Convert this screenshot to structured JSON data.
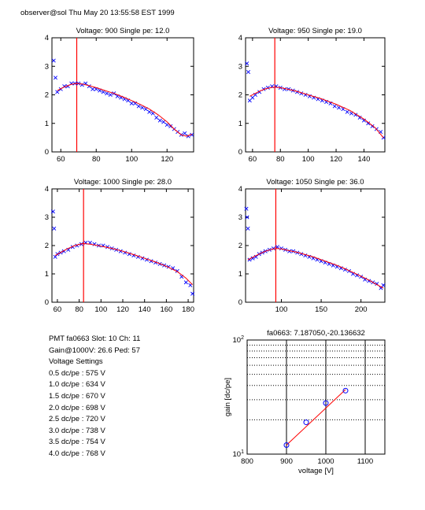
{
  "header": "observer@sol  Thu May 20 13:55:58 EST 1999",
  "info": {
    "pmt_line": "PMT fa0663 Slot: 10 Ch: 11",
    "gain_line": "Gain@1000V: 26.6 Ped: 57",
    "settings_title": "Voltage Settings",
    "settings": [
      "0.5 dc/pe : 575 V",
      "1.0 dc/pe : 634 V",
      "1.5 dc/pe : 670 V",
      "2.0 dc/pe : 698 V",
      "2.5 dc/pe : 720 V",
      "3.0 dc/pe : 738 V",
      "3.5 dc/pe : 754 V",
      "4.0 dc/pe : 768 V"
    ]
  },
  "colors": {
    "data": "#0000ff",
    "fit": "#ff0000",
    "marker": "#ff0000",
    "axis": "#000000",
    "grid": "#000000"
  },
  "chart_data": [
    {
      "type": "scatter",
      "title": "Voltage: 900 Single pe: 12.0",
      "xlim": [
        55,
        135
      ],
      "ylim": [
        0,
        4
      ],
      "xticks": [
        60,
        80,
        100,
        120
      ],
      "yticks": [
        0,
        1,
        2,
        3,
        4
      ],
      "marker_x": 69,
      "series": [
        {
          "kind": "points",
          "x": [
            56,
            57,
            58,
            60,
            62,
            64,
            66,
            68,
            70,
            72,
            74,
            76,
            78,
            80,
            82,
            84,
            86,
            88,
            90,
            92,
            94,
            96,
            98,
            100,
            102,
            104,
            106,
            108,
            110,
            112,
            114,
            116,
            118,
            120,
            122,
            124,
            126,
            128,
            130,
            132,
            134
          ],
          "y": [
            3.2,
            2.6,
            2.1,
            2.2,
            2.3,
            2.3,
            2.4,
            2.4,
            2.4,
            2.35,
            2.4,
            2.3,
            2.2,
            2.2,
            2.15,
            2.1,
            2.05,
            2.0,
            2.05,
            1.95,
            1.9,
            1.85,
            1.8,
            1.7,
            1.7,
            1.6,
            1.55,
            1.5,
            1.4,
            1.35,
            1.2,
            1.1,
            1.05,
            0.95,
            0.9,
            0.8,
            0.7,
            0.6,
            0.65,
            0.55,
            0.6
          ]
        },
        {
          "kind": "fit",
          "x": [
            58,
            62,
            66,
            69,
            72,
            76,
            80,
            85,
            90,
            95,
            100,
            105,
            110,
            115,
            120,
            124,
            128,
            131,
            134
          ],
          "y": [
            2.15,
            2.28,
            2.37,
            2.4,
            2.38,
            2.32,
            2.25,
            2.15,
            2.05,
            1.93,
            1.8,
            1.66,
            1.5,
            1.3,
            1.05,
            0.8,
            0.6,
            0.55,
            0.62
          ]
        }
      ]
    },
    {
      "type": "scatter",
      "title": "Voltage: 950 Single pe: 19.0",
      "xlim": [
        55,
        155
      ],
      "ylim": [
        0,
        4
      ],
      "xticks": [
        60,
        80,
        100,
        120,
        140
      ],
      "yticks": [
        0,
        1,
        2,
        3,
        4
      ],
      "marker_x": 76,
      "series": [
        {
          "kind": "points",
          "x": [
            56,
            57,
            58,
            60,
            62,
            65,
            68,
            71,
            74,
            77,
            80,
            83,
            86,
            89,
            92,
            95,
            98,
            101,
            104,
            107,
            110,
            113,
            116,
            119,
            122,
            125,
            128,
            131,
            134,
            137,
            140,
            143,
            146,
            149,
            152,
            154
          ],
          "y": [
            3.1,
            2.8,
            1.8,
            1.9,
            2.0,
            2.1,
            2.2,
            2.25,
            2.3,
            2.3,
            2.25,
            2.2,
            2.2,
            2.15,
            2.1,
            2.05,
            2.0,
            1.95,
            1.9,
            1.85,
            1.8,
            1.75,
            1.7,
            1.6,
            1.55,
            1.5,
            1.4,
            1.35,
            1.3,
            1.2,
            1.1,
            1.0,
            0.9,
            0.8,
            0.7,
            0.5
          ]
        },
        {
          "kind": "fit",
          "x": [
            58,
            62,
            66,
            70,
            74,
            76,
            80,
            90,
            100,
            110,
            120,
            130,
            140,
            148,
            154
          ],
          "y": [
            1.95,
            2.05,
            2.15,
            2.22,
            2.26,
            2.27,
            2.25,
            2.15,
            2.0,
            1.85,
            1.67,
            1.45,
            1.15,
            0.85,
            0.5
          ]
        }
      ]
    },
    {
      "type": "scatter",
      "title": "Voltage: 1000 Single pe: 28.0",
      "xlim": [
        55,
        185
      ],
      "ylim": [
        0,
        4
      ],
      "xticks": [
        60,
        80,
        100,
        120,
        140,
        160,
        180
      ],
      "yticks": [
        0,
        1,
        2,
        3,
        4
      ],
      "marker_x": 84,
      "series": [
        {
          "kind": "points",
          "x": [
            56,
            57,
            58,
            60,
            63,
            66,
            70,
            74,
            78,
            82,
            86,
            90,
            94,
            98,
            102,
            106,
            110,
            114,
            118,
            122,
            126,
            130,
            134,
            138,
            142,
            146,
            150,
            154,
            158,
            162,
            166,
            170,
            174,
            178,
            182,
            184
          ],
          "y": [
            3.2,
            2.6,
            1.6,
            1.7,
            1.75,
            1.8,
            1.85,
            1.95,
            2.0,
            2.05,
            2.1,
            2.1,
            2.05,
            2.0,
            2.0,
            1.95,
            1.9,
            1.85,
            1.8,
            1.75,
            1.7,
            1.65,
            1.6,
            1.55,
            1.5,
            1.45,
            1.4,
            1.35,
            1.3,
            1.25,
            1.2,
            1.1,
            0.9,
            0.7,
            0.6,
            0.3
          ]
        },
        {
          "kind": "fit",
          "x": [
            58,
            64,
            70,
            76,
            82,
            84,
            90,
            100,
            110,
            120,
            130,
            140,
            150,
            160,
            170,
            178,
            184
          ],
          "y": [
            1.65,
            1.78,
            1.9,
            2.0,
            2.06,
            2.07,
            2.05,
            1.98,
            1.9,
            1.8,
            1.68,
            1.55,
            1.42,
            1.27,
            1.08,
            0.85,
            0.62
          ]
        }
      ]
    },
    {
      "type": "scatter",
      "title": "Voltage: 1050 Single pe: 36.0",
      "xlim": [
        55,
        230
      ],
      "ylim": [
        0,
        4
      ],
      "xticks": [
        100,
        150,
        200
      ],
      "yticks": [
        0,
        1,
        2,
        3,
        4
      ],
      "marker_x": 93,
      "series": [
        {
          "kind": "points",
          "x": [
            56,
            57,
            58,
            60,
            64,
            68,
            72,
            76,
            80,
            85,
            90,
            95,
            100,
            105,
            110,
            115,
            120,
            125,
            130,
            135,
            140,
            145,
            150,
            155,
            160,
            165,
            170,
            175,
            180,
            185,
            190,
            195,
            200,
            205,
            210,
            215,
            220,
            225,
            228
          ],
          "y": [
            3.3,
            3.0,
            2.6,
            1.5,
            1.55,
            1.6,
            1.7,
            1.75,
            1.8,
            1.85,
            1.9,
            1.95,
            1.9,
            1.85,
            1.8,
            1.8,
            1.75,
            1.7,
            1.65,
            1.6,
            1.55,
            1.5,
            1.45,
            1.4,
            1.35,
            1.3,
            1.25,
            1.2,
            1.15,
            1.1,
            1.0,
            0.95,
            0.9,
            0.8,
            0.75,
            0.7,
            0.65,
            0.5,
            0.6
          ]
        },
        {
          "kind": "fit",
          "x": [
            58,
            65,
            72,
            80,
            88,
            93,
            100,
            110,
            120,
            130,
            140,
            150,
            160,
            170,
            180,
            190,
            200,
            210,
            220,
            228
          ],
          "y": [
            1.5,
            1.6,
            1.7,
            1.8,
            1.87,
            1.9,
            1.88,
            1.82,
            1.76,
            1.68,
            1.6,
            1.5,
            1.4,
            1.3,
            1.18,
            1.05,
            0.92,
            0.78,
            0.62,
            0.5
          ]
        }
      ]
    },
    {
      "type": "line",
      "title": "fa0663: 7.187050,-20.136632",
      "xlabel": "voltage [V]",
      "ylabel": "gain [dc/pe]",
      "xlim": [
        800,
        1150
      ],
      "ylim": [
        10,
        100
      ],
      "log_y": true,
      "xticks": [
        800,
        900,
        1000,
        1100
      ],
      "yticks": [
        {
          "value": 10,
          "base": "10",
          "exp": "1"
        },
        {
          "value": 100,
          "base": "10",
          "exp": "2"
        }
      ],
      "grid": true,
      "points": {
        "x": [
          900,
          950,
          1000,
          1050
        ],
        "y": [
          12.0,
          19.0,
          28.0,
          36.0
        ]
      },
      "fit": {
        "x": [
          900,
          1050
        ],
        "y": [
          12.0,
          36.8
        ]
      }
    }
  ]
}
